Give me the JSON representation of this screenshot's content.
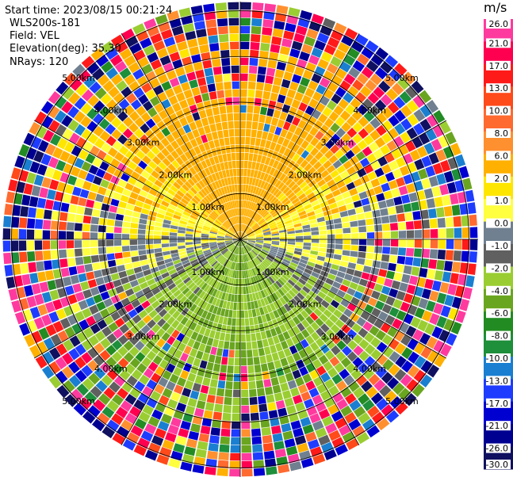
{
  "header": {
    "start_time": "Start time: 2023/08/15 00:21:24",
    "instrument": "WLS200s-181",
    "field": "Field: VEL",
    "elevation": "Elevation(deg): 35.30",
    "nrays": "NRays: 120"
  },
  "colorbar": {
    "unit": "m/s",
    "ticks": [
      "26.0",
      "21.0",
      "17.0",
      "13.0",
      "10.0",
      "8.0",
      "6.0",
      "2.0",
      "1.0",
      "0.0",
      "-1.0",
      "-2.0",
      "-4.0",
      "-6.0",
      "-8.0",
      "-10.0",
      "-13.0",
      "-17.0",
      "-21.0",
      "-26.0",
      "-30.0"
    ],
    "colors": [
      "#ff3a9e",
      "#ff0050",
      "#ff1a1a",
      "#ff4a1a",
      "#ff6a30",
      "#ff9030",
      "#ffb000",
      "#ffe600",
      "#ffff40",
      "#708090",
      "#606060",
      "#9acd32",
      "#6aa520",
      "#228b22",
      "#1e8f3a",
      "#1a7fd0",
      "#1e3cff",
      "#0000d0",
      "#000090",
      "#101060"
    ]
  },
  "chart_data": {
    "type": "ppi",
    "field": "VEL",
    "units": "m/s",
    "nrays": 120,
    "range_ring_labels": [
      "1.00km",
      "2.00km",
      "3.00km",
      "4.00km",
      "5.00km"
    ],
    "range_rings_km": [
      1.0,
      2.0,
      3.0,
      4.0,
      5.0
    ],
    "vmin": -30.0,
    "vmax": 26.0
  }
}
